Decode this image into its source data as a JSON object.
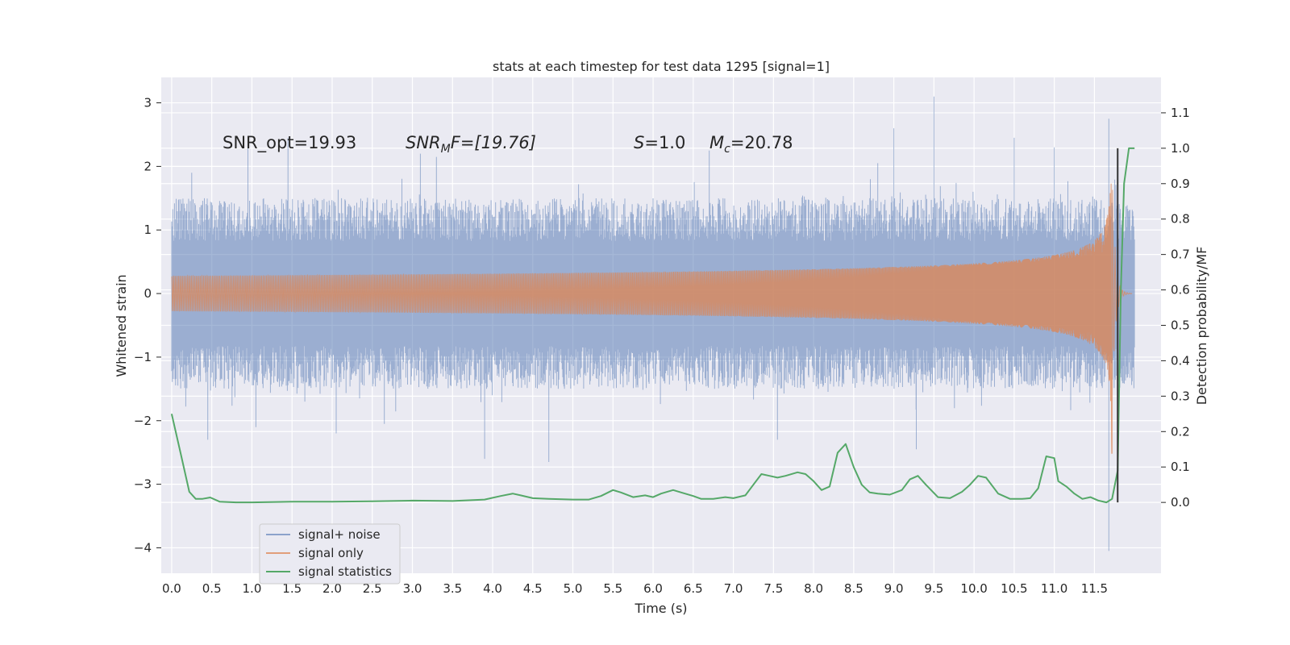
{
  "chart_data": {
    "type": "line",
    "title": "stats at each timestep for test data 1295 [signal=1]",
    "xlabel": "Time (s)",
    "ylabel": "Whitened strain",
    "y2label": "Detection probability/MF",
    "xlim": [
      -0.13,
      12.33
    ],
    "ylim": [
      -4.4,
      3.4
    ],
    "y2lim": [
      -0.2,
      1.2
    ],
    "grid": true,
    "xticks": [
      0.0,
      0.5,
      1.0,
      1.5,
      2.0,
      2.5,
      3.0,
      3.5,
      4.0,
      4.5,
      5.0,
      5.5,
      6.0,
      6.5,
      7.0,
      7.5,
      8.0,
      8.5,
      9.0,
      9.5,
      10.0,
      10.5,
      11.0,
      11.5
    ],
    "xtick_labels": [
      "0.0",
      "0.5",
      "1.0",
      "1.5",
      "2.0",
      "2.5",
      "3.0",
      "3.5",
      "4.0",
      "4.5",
      "5.0",
      "5.5",
      "6.0",
      "6.5",
      "7.0",
      "7.5",
      "8.0",
      "8.5",
      "9.0",
      "9.5",
      "10.0",
      "10.5",
      "11.0",
      "11.5"
    ],
    "yticks": [
      -4,
      -3,
      -2,
      -1,
      0,
      1,
      2,
      3
    ],
    "ytick_labels": [
      "−4",
      "−3",
      "−2",
      "−1",
      "0",
      "1",
      "2",
      "3"
    ],
    "y2ticks": [
      0.0,
      0.1,
      0.2,
      0.3,
      0.4,
      0.5,
      0.6,
      0.7,
      0.8,
      0.9,
      1.0,
      1.1
    ],
    "y2tick_labels": [
      "0.0",
      "0.1",
      "0.2",
      "0.3",
      "0.4",
      "0.5",
      "0.6",
      "0.7",
      "0.8",
      "0.9",
      "1.0",
      "1.1"
    ],
    "annotations": {
      "snr_opt": "SNR_opt=19.93",
      "snr_mf_base": "SNR",
      "snr_mf_sub": "M",
      "snr_mf_rest": "F=[19.76]",
      "s_var": "S",
      "s_rest": "=1.0",
      "mc_var": "M",
      "mc_sub": "c",
      "mc_rest": "=20.78"
    },
    "series": [
      {
        "name": "signal+ noise",
        "color": "#4c72b0",
        "axis": "left",
        "description": "whitened strain, noise envelope roughly ±1.5 with spikes to about 3",
        "t_start": 0.0,
        "t_end": 12.0,
        "envelope": 1.5,
        "spikes": [
          {
            "t": 0.25,
            "v": 1.9
          },
          {
            "t": 0.45,
            "v": -2.3
          },
          {
            "t": 0.95,
            "v": 2.35
          },
          {
            "t": 1.05,
            "v": -2.1
          },
          {
            "t": 1.45,
            "v": 2.45
          },
          {
            "t": 2.05,
            "v": -2.2
          },
          {
            "t": 2.65,
            "v": -2.05
          },
          {
            "t": 3.1,
            "v": 2.2
          },
          {
            "t": 3.3,
            "v": 2.15
          },
          {
            "t": 3.9,
            "v": -2.6
          },
          {
            "t": 4.7,
            "v": -2.65
          },
          {
            "t": 6.7,
            "v": 2.25
          },
          {
            "t": 7.55,
            "v": -2.3
          },
          {
            "t": 8.8,
            "v": 2.05
          },
          {
            "t": 9.0,
            "v": 2.6
          },
          {
            "t": 9.28,
            "v": -2.45
          },
          {
            "t": 9.5,
            "v": 3.1
          },
          {
            "t": 10.5,
            "v": 2.45
          },
          {
            "t": 11.0,
            "v": 2.3
          },
          {
            "t": 11.68,
            "v": 2.75
          },
          {
            "t": 11.68,
            "v": -4.05
          }
        ]
      },
      {
        "name": "signal only",
        "color": "#dd8452",
        "axis": "left",
        "description": "chirp growing from near 0 to about ±2.7 at merger near 11.7 s",
        "t_start": 0.0,
        "t_merger": 11.72,
        "peak_amplitude": 2.6
      },
      {
        "name": "signal statistics",
        "color": "#55a868",
        "axis": "right",
        "t": [
          0.0,
          0.12,
          0.22,
          0.3,
          0.38,
          0.48,
          0.6,
          0.8,
          1.0,
          1.5,
          2.0,
          2.5,
          3.0,
          3.5,
          3.9,
          4.1,
          4.25,
          4.35,
          4.5,
          4.7,
          5.0,
          5.2,
          5.35,
          5.5,
          5.6,
          5.75,
          5.9,
          6.0,
          6.1,
          6.25,
          6.35,
          6.5,
          6.6,
          6.75,
          6.9,
          7.0,
          7.15,
          7.25,
          7.35,
          7.45,
          7.55,
          7.65,
          7.8,
          7.9,
          8.0,
          8.1,
          8.2,
          8.3,
          8.4,
          8.5,
          8.6,
          8.7,
          8.8,
          8.95,
          9.1,
          9.2,
          9.3,
          9.4,
          9.55,
          9.7,
          9.85,
          9.95,
          10.05,
          10.15,
          10.3,
          10.45,
          10.6,
          10.7,
          10.8,
          10.9,
          11.0,
          11.05,
          11.15,
          11.25,
          11.35,
          11.45,
          11.55,
          11.65,
          11.72,
          11.79,
          11.83,
          11.87,
          11.93,
          12.0
        ],
        "values": [
          0.25,
          0.13,
          0.03,
          0.01,
          0.01,
          0.014,
          0.002,
          0.0,
          0.0,
          0.002,
          0.002,
          0.003,
          0.005,
          0.004,
          0.008,
          0.018,
          0.025,
          0.02,
          0.012,
          0.01,
          0.008,
          0.008,
          0.018,
          0.035,
          0.028,
          0.015,
          0.02,
          0.015,
          0.025,
          0.035,
          0.028,
          0.018,
          0.01,
          0.01,
          0.015,
          0.012,
          0.02,
          0.05,
          0.08,
          0.075,
          0.07,
          0.075,
          0.085,
          0.08,
          0.06,
          0.035,
          0.045,
          0.14,
          0.165,
          0.1,
          0.05,
          0.028,
          0.025,
          0.022,
          0.035,
          0.065,
          0.075,
          0.05,
          0.015,
          0.012,
          0.03,
          0.05,
          0.075,
          0.07,
          0.025,
          0.01,
          0.01,
          0.012,
          0.04,
          0.13,
          0.125,
          0.06,
          0.045,
          0.025,
          0.01,
          0.015,
          0.005,
          0.0,
          0.01,
          0.09,
          0.6,
          0.9,
          1.0,
          1.0
        ]
      }
    ],
    "marker_line": {
      "t": 11.79,
      "y2_from": 0.0,
      "y2_to": 1.0,
      "color": "#333333"
    },
    "legend": {
      "placement": "lower-left",
      "entries": [
        {
          "label": "signal+ noise",
          "color": "#4c72b0"
        },
        {
          "label": "signal only",
          "color": "#dd8452"
        },
        {
          "label": "signal statistics",
          "color": "#55a868"
        }
      ]
    },
    "colors": {
      "plot_bg": "#eaeaf2",
      "grid": "#ffffff",
      "text": "#262626"
    }
  }
}
